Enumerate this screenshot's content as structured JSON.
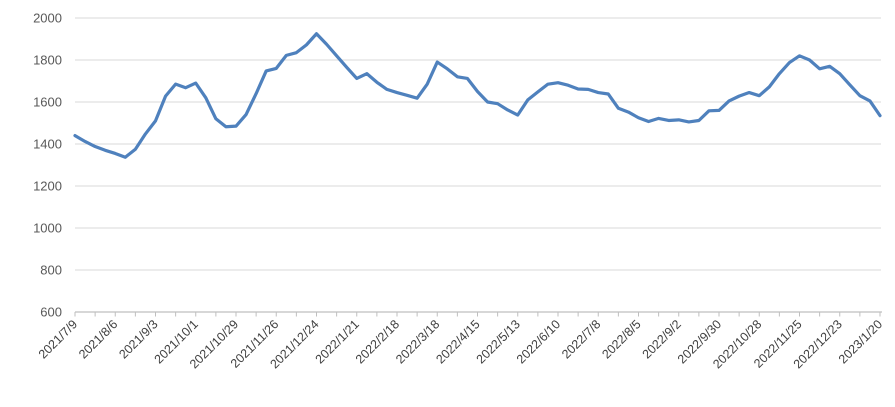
{
  "chart_data": {
    "type": "line",
    "title": "",
    "xlabel": "",
    "ylabel": "",
    "legend": "none",
    "grid": "horizontal-only",
    "ylim": [
      600,
      2000
    ],
    "y_ticks": [
      600,
      800,
      1000,
      1200,
      1400,
      1600,
      1800,
      2000
    ],
    "x_tick_labels": [
      "2021/7/9",
      "2021/8/6",
      "2021/9/3",
      "2021/10/1",
      "2021/10/29",
      "2021/11/26",
      "2021/12/24",
      "2022/1/21",
      "2022/2/18",
      "2022/3/18",
      "2022/4/15",
      "2022/5/13",
      "2022/6/10",
      "2022/7/8",
      "2022/8/5",
      "2022/9/2",
      "2022/9/30",
      "2022/10/28",
      "2022/11/25",
      "2022/12/23",
      "2023/1/20"
    ],
    "points_per_label": 4,
    "point_count": 81,
    "interval_days": 7,
    "minor_tick_every_points": 2,
    "values": [
      1440,
      1412,
      1388,
      1370,
      1355,
      1337,
      1375,
      1448,
      1510,
      1628,
      1685,
      1668,
      1690,
      1620,
      1520,
      1482,
      1485,
      1540,
      1640,
      1748,
      1760,
      1822,
      1835,
      1872,
      1925,
      1875,
      1820,
      1765,
      1712,
      1735,
      1694,
      1660,
      1645,
      1632,
      1618,
      1685,
      1790,
      1758,
      1720,
      1712,
      1650,
      1600,
      1592,
      1562,
      1538,
      1610,
      1648,
      1685,
      1692,
      1680,
      1662,
      1660,
      1645,
      1638,
      1570,
      1552,
      1525,
      1507,
      1522,
      1512,
      1515,
      1505,
      1512,
      1558,
      1560,
      1605,
      1628,
      1645,
      1630,
      1672,
      1735,
      1788,
      1820,
      1800,
      1758,
      1770,
      1735,
      1682,
      1630,
      1605,
      1535
    ],
    "line_color": "#4F81BD",
    "line_width": 3.2,
    "gridline_color": "#D9D9D9",
    "axis_color": "#BFBFBF",
    "label_color": "#595959",
    "x_label_color": "#404040",
    "background": "#FFFFFF",
    "y_label_font_px": 13,
    "x_label_font_px": 12.5,
    "x_label_rotation_deg": -45
  }
}
